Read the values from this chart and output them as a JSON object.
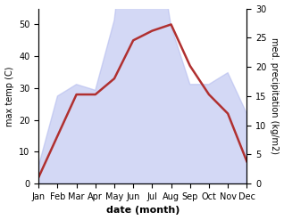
{
  "months": [
    "Jan",
    "Feb",
    "Mar",
    "Apr",
    "May",
    "Jun",
    "Jul",
    "Aug",
    "Sep",
    "Oct",
    "Nov",
    "Dec"
  ],
  "month_indices": [
    1,
    2,
    3,
    4,
    5,
    6,
    7,
    8,
    9,
    10,
    11,
    12
  ],
  "temp_max": [
    2,
    15,
    28,
    28,
    33,
    45,
    48,
    50,
    37,
    28,
    22,
    7
  ],
  "precipitation": [
    3,
    15,
    17,
    16,
    28,
    55,
    47,
    27,
    17,
    17,
    19,
    12
  ],
  "temp_color": "#b03030",
  "precip_color": "#b0b8ee",
  "precip_alpha": 0.55,
  "temp_ylim": [
    0,
    55
  ],
  "precip_ylim": [
    0,
    30
  ],
  "temp_yticks": [
    0,
    10,
    20,
    30,
    40,
    50
  ],
  "precip_yticks": [
    0,
    5,
    10,
    15,
    20,
    25,
    30
  ],
  "xlabel": "date (month)",
  "ylabel_left": "max temp (C)",
  "ylabel_right": "med. precipitation (kg/m2)",
  "line_width": 1.8,
  "background_color": "#ffffff",
  "scale_factor": 1.8333
}
